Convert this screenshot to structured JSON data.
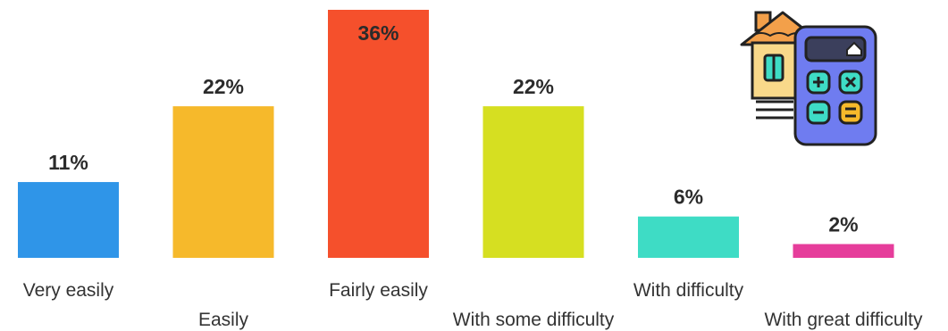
{
  "chart_data": {
    "type": "bar",
    "title": "",
    "xlabel": "",
    "ylabel": "",
    "ylim": [
      0,
      36
    ],
    "grid": false,
    "legend": "none",
    "categories": [
      "Very easily",
      "Easily",
      "Fairly easily",
      "With some difficulty",
      "With difficulty",
      "With great difficulty"
    ],
    "values": [
      11,
      22,
      36,
      22,
      6,
      2
    ],
    "value_labels": [
      "11%",
      "22%",
      "36%",
      "22%",
      "6%",
      "2%"
    ],
    "colors": [
      "#2f95e8",
      "#f6b92b",
      "#f5502c",
      "#d6df21",
      "#3edcc5",
      "#e63d9b"
    ]
  },
  "illustration": {
    "icon": "house-calculator-icon",
    "colors": {
      "body": "#6f7cf0",
      "outline": "#222222",
      "keys": "#3edcc5",
      "accent": "#f6b92b",
      "house": "#f3a04a"
    }
  }
}
